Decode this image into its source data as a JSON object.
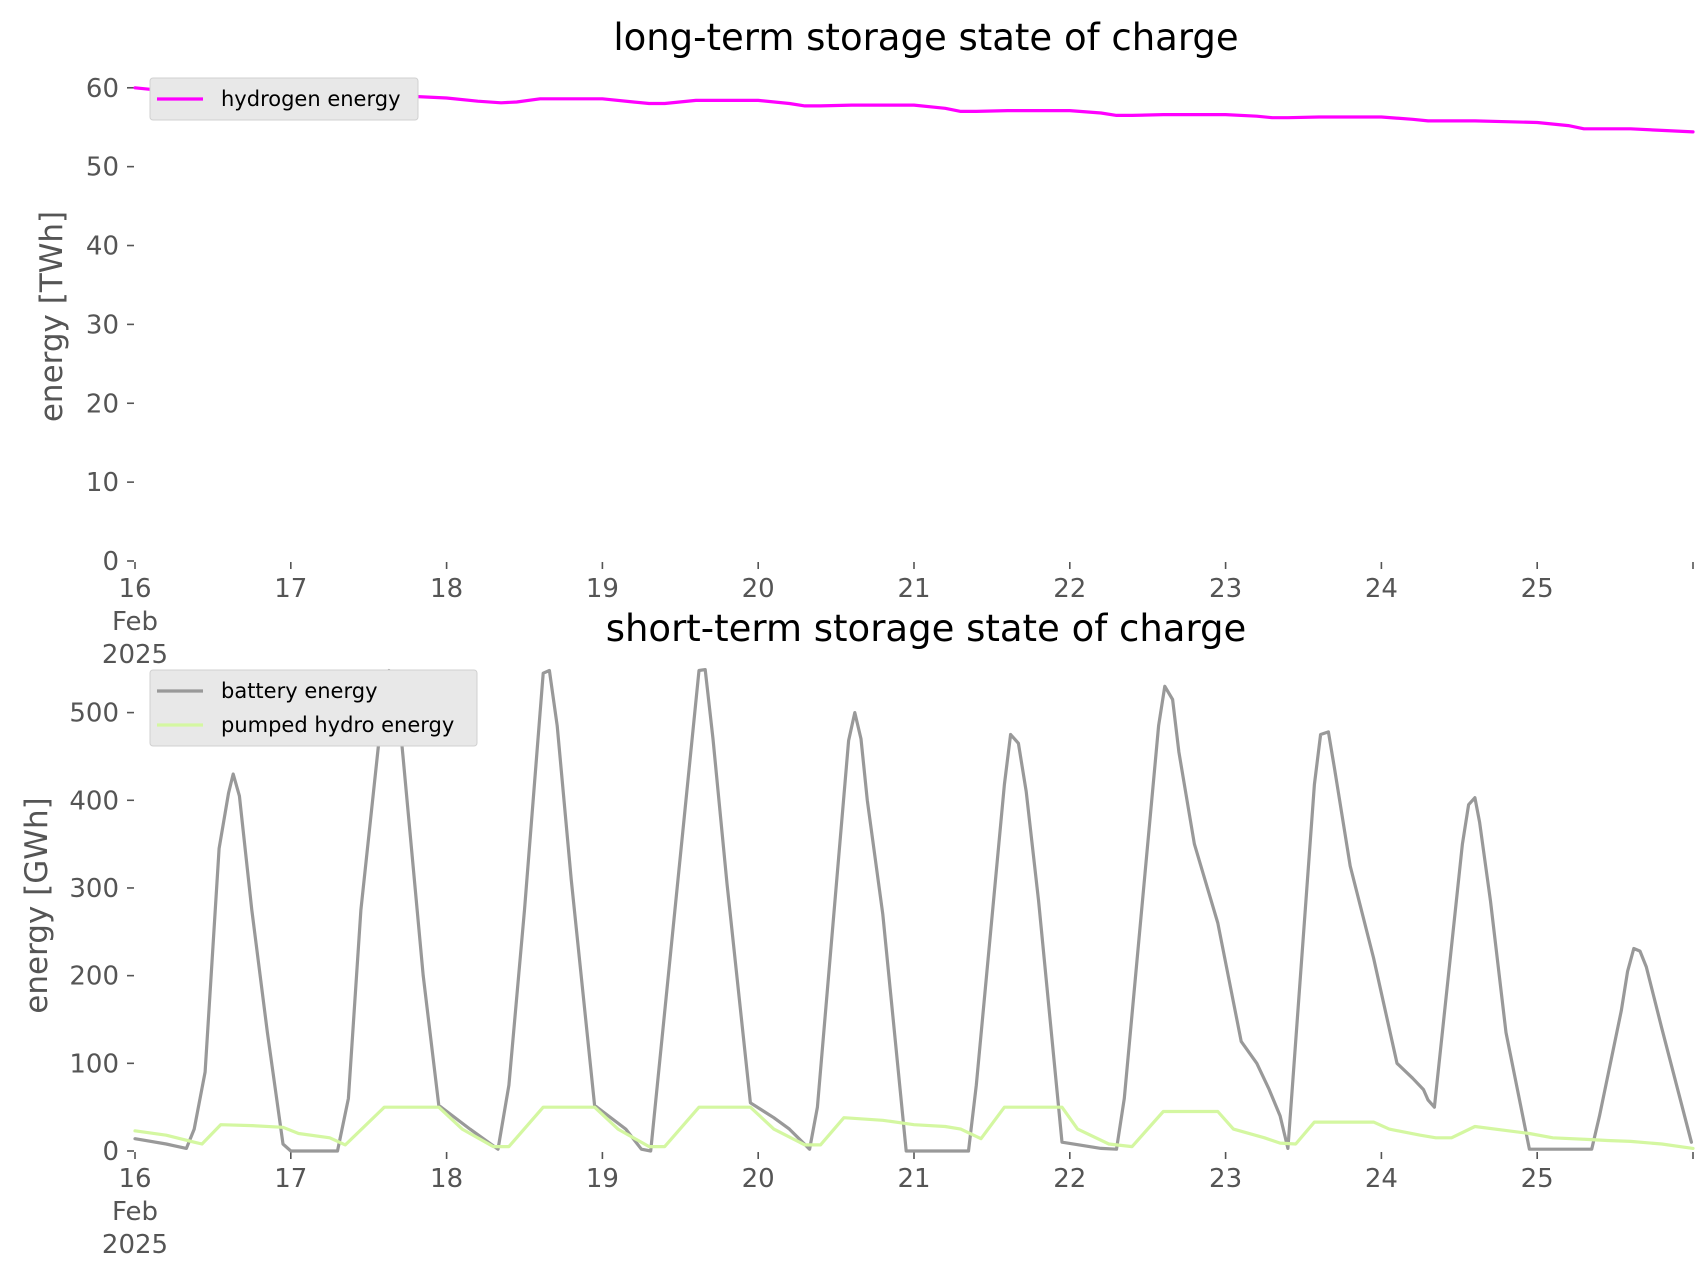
{
  "chart_data": [
    {
      "type": "line",
      "title": "long-term storage state of charge",
      "xlabel": "",
      "ylabel": "energy [TWh]",
      "xlim": [
        16,
        26
      ],
      "ylim": [
        0,
        62
      ],
      "yticks": [
        0,
        10,
        20,
        30,
        40,
        50,
        60
      ],
      "xticks": [
        {
          "value": 16,
          "lines": [
            "16",
            "Feb",
            "2025"
          ]
        },
        {
          "value": 17,
          "lines": [
            "17"
          ]
        },
        {
          "value": 18,
          "lines": [
            "18"
          ]
        },
        {
          "value": 19,
          "lines": [
            "19"
          ]
        },
        {
          "value": 20,
          "lines": [
            "20"
          ]
        },
        {
          "value": 21,
          "lines": [
            "21"
          ]
        },
        {
          "value": 22,
          "lines": [
            "22"
          ]
        },
        {
          "value": 23,
          "lines": [
            "23"
          ]
        },
        {
          "value": 24,
          "lines": [
            "24"
          ]
        },
        {
          "value": 25,
          "lines": [
            "25"
          ]
        }
      ],
      "grid": false,
      "legend": "top-left",
      "series": [
        {
          "name": "hydrogen energy",
          "color": "#ff00ff",
          "x": [
            16.0,
            16.3,
            16.6,
            16.9,
            17.2,
            17.4,
            17.6,
            17.8,
            18.0,
            18.2,
            18.35,
            18.45,
            18.6,
            18.8,
            19.0,
            19.2,
            19.3,
            19.4,
            19.6,
            19.8,
            20.0,
            20.2,
            20.3,
            20.4,
            20.6,
            20.8,
            21.0,
            21.2,
            21.3,
            21.4,
            21.6,
            21.8,
            22.0,
            22.2,
            22.3,
            22.4,
            22.6,
            22.8,
            23.0,
            23.2,
            23.3,
            23.4,
            23.6,
            23.8,
            24.0,
            24.2,
            24.3,
            24.4,
            24.6,
            24.8,
            25.0,
            25.2,
            25.3,
            25.4,
            25.6,
            25.8,
            26.0
          ],
          "y": [
            60.0,
            59.4,
            59.1,
            58.9,
            58.8,
            58.8,
            58.8,
            58.9,
            58.7,
            58.3,
            58.1,
            58.2,
            58.6,
            58.6,
            58.6,
            58.2,
            58.0,
            58.0,
            58.4,
            58.4,
            58.4,
            58.0,
            57.7,
            57.7,
            57.8,
            57.8,
            57.8,
            57.4,
            57.0,
            57.0,
            57.1,
            57.1,
            57.1,
            56.8,
            56.5,
            56.5,
            56.6,
            56.6,
            56.6,
            56.4,
            56.2,
            56.2,
            56.3,
            56.3,
            56.3,
            56.0,
            55.8,
            55.8,
            55.8,
            55.7,
            55.6,
            55.2,
            54.8,
            54.8,
            54.8,
            54.6,
            54.4
          ]
        }
      ]
    },
    {
      "type": "line",
      "title": "short-term storage state of charge",
      "xlabel": "",
      "ylabel": "energy [GWh]",
      "xlim": [
        16,
        26
      ],
      "ylim": [
        0,
        560
      ],
      "yticks": [
        0,
        100,
        200,
        300,
        400,
        500
      ],
      "xticks": [
        {
          "value": 16,
          "lines": [
            "16",
            "Feb",
            "2025"
          ]
        },
        {
          "value": 17,
          "lines": [
            "17"
          ]
        },
        {
          "value": 18,
          "lines": [
            "18"
          ]
        },
        {
          "value": 19,
          "lines": [
            "19"
          ]
        },
        {
          "value": 20,
          "lines": [
            "20"
          ]
        },
        {
          "value": 21,
          "lines": [
            "21"
          ]
        },
        {
          "value": 22,
          "lines": [
            "22"
          ]
        },
        {
          "value": 23,
          "lines": [
            "23"
          ]
        },
        {
          "value": 24,
          "lines": [
            "24"
          ]
        },
        {
          "value": 25,
          "lines": [
            "25"
          ]
        }
      ],
      "grid": false,
      "legend": "top-left",
      "series": [
        {
          "name": "battery energy",
          "color": "#999999",
          "x": [
            16.0,
            16.2,
            16.33,
            16.38,
            16.45,
            16.54,
            16.6,
            16.63,
            16.67,
            16.71,
            16.75,
            16.85,
            16.95,
            17.0,
            17.3,
            17.37,
            17.45,
            17.6,
            17.63,
            17.67,
            17.72,
            17.85,
            17.95,
            18.15,
            18.33,
            18.4,
            18.5,
            18.62,
            18.66,
            18.71,
            18.8,
            18.95,
            19.15,
            19.25,
            19.31,
            19.62,
            19.66,
            19.71,
            19.8,
            19.95,
            20.1,
            20.2,
            20.33,
            20.38,
            20.58,
            20.62,
            20.66,
            20.7,
            20.8,
            20.95,
            21.35,
            21.4,
            21.58,
            21.62,
            21.67,
            21.72,
            21.8,
            21.95,
            22.2,
            22.3,
            22.35,
            22.57,
            22.61,
            22.66,
            22.7,
            22.8,
            22.95,
            23.1,
            23.2,
            23.28,
            23.35,
            23.4,
            23.57,
            23.61,
            23.66,
            23.7,
            23.8,
            23.95,
            24.1,
            24.2,
            24.27,
            24.3,
            24.34,
            24.52,
            24.56,
            24.6,
            24.63,
            24.7,
            24.8,
            24.95,
            25.35,
            25.4,
            25.54,
            25.58,
            25.62,
            25.66,
            25.7,
            25.8,
            25.99
          ],
          "y": [
            14,
            8,
            3,
            25,
            90,
            345,
            408,
            430,
            405,
            340,
            275,
            135,
            8,
            0,
            0,
            60,
            275,
            525,
            548,
            543,
            450,
            200,
            52,
            25,
            2,
            75,
            275,
            545,
            548,
            485,
            310,
            52,
            25,
            2,
            0,
            548,
            549,
            470,
            305,
            55,
            38,
            25,
            2,
            50,
            468,
            500,
            470,
            400,
            270,
            0,
            0,
            75,
            418,
            475,
            465,
            410,
            285,
            10,
            3,
            2,
            60,
            485,
            530,
            515,
            455,
            350,
            260,
            125,
            100,
            70,
            40,
            3,
            418,
            475,
            478,
            435,
            325,
            220,
            100,
            83,
            70,
            58,
            50,
            350,
            395,
            403,
            375,
            285,
            135,
            2,
            2,
            40,
            160,
            205,
            231,
            228,
            210,
            140,
            10
          ]
        },
        {
          "name": "pumped hydro energy",
          "color": "#d4f7a1",
          "x": [
            16.0,
            16.2,
            16.38,
            16.43,
            16.55,
            16.75,
            16.95,
            17.05,
            17.25,
            17.35,
            17.6,
            17.95,
            18.1,
            18.3,
            18.4,
            18.62,
            18.95,
            19.1,
            19.3,
            19.4,
            19.62,
            19.95,
            20.1,
            20.3,
            20.4,
            20.55,
            20.8,
            21.0,
            21.2,
            21.3,
            21.43,
            21.58,
            21.95,
            22.05,
            22.25,
            22.4,
            22.6,
            22.95,
            23.05,
            23.25,
            23.35,
            23.45,
            23.57,
            23.95,
            24.05,
            24.25,
            24.35,
            24.45,
            24.6,
            24.95,
            25.1,
            25.35,
            25.45,
            25.6,
            25.8,
            26.0
          ],
          "y": [
            23,
            18,
            10,
            8,
            30,
            29,
            27,
            20,
            15,
            7,
            50,
            50,
            25,
            5,
            5,
            50,
            50,
            25,
            5,
            5,
            50,
            50,
            25,
            7,
            7,
            38,
            35,
            30,
            28,
            25,
            14,
            50,
            50,
            25,
            8,
            5,
            45,
            45,
            25,
            15,
            9,
            8,
            33,
            33,
            25,
            18,
            15,
            15,
            28,
            20,
            15,
            13,
            12,
            11,
            8,
            3
          ]
        }
      ]
    }
  ]
}
